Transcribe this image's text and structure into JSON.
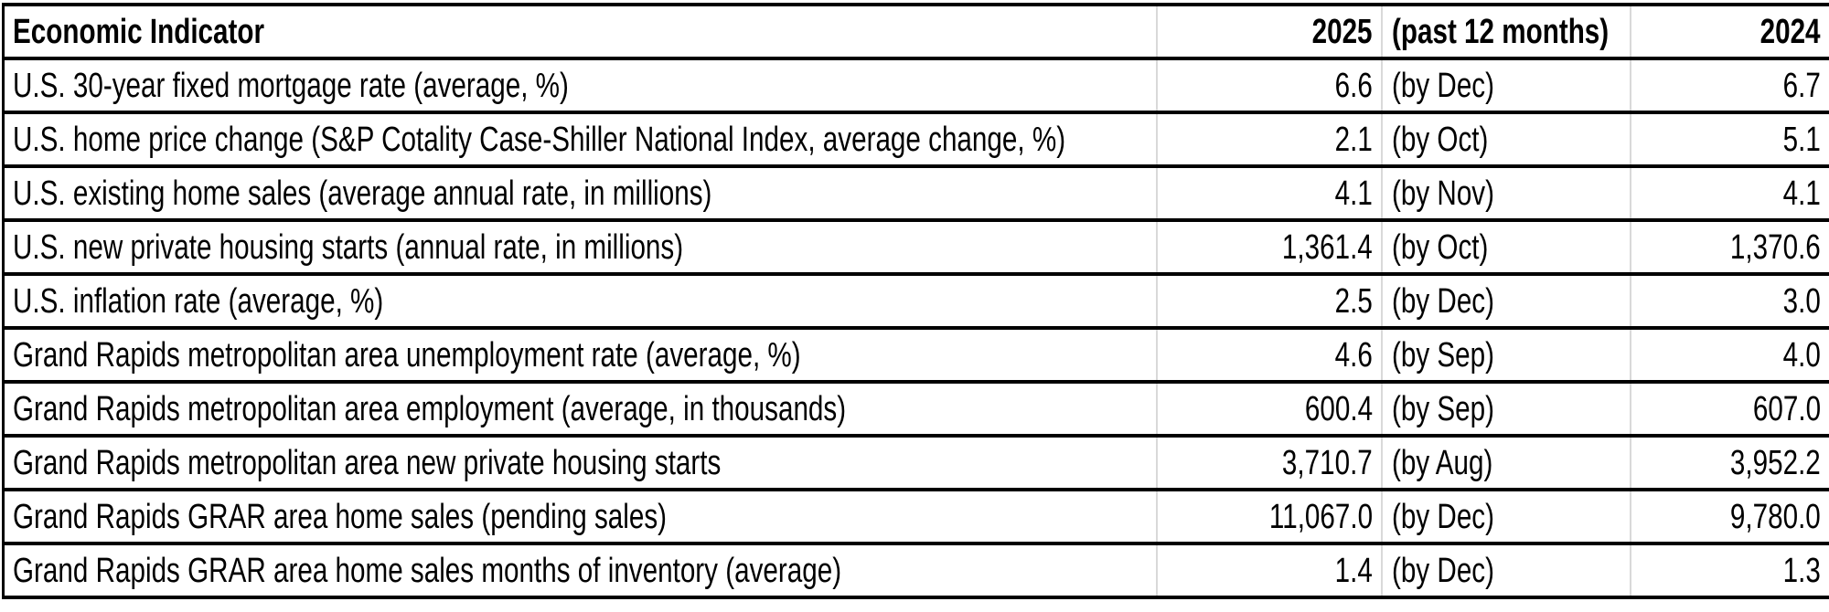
{
  "colors": {
    "text": "#000000",
    "border": "#000000",
    "gridline": "#d9d9d9",
    "background": "#ffffff"
  },
  "table": {
    "header": {
      "indicator": "Economic Indicator",
      "y2025": "2025",
      "period_note": "(past 12 months)",
      "y2024": "2024"
    },
    "rows": [
      {
        "indicator": "U.S. 30-year fixed mortgage rate (average, %)",
        "value_2025": "6.6",
        "by": "(by Dec)",
        "value_2024": "6.7"
      },
      {
        "indicator": "U.S. home price change (S&P Cotality Case-Shiller National Index, average change, %)",
        "value_2025": "2.1",
        "by": "(by Oct)",
        "value_2024": "5.1"
      },
      {
        "indicator": "U.S. existing home sales (average annual rate, in millions)",
        "value_2025": "4.1",
        "by": "(by Nov)",
        "value_2024": "4.1"
      },
      {
        "indicator": "U.S. new private housing starts (annual rate, in millions)",
        "value_2025": "1,361.4",
        "by": "(by Oct)",
        "value_2024": "1,370.6"
      },
      {
        "indicator": "U.S. inflation rate (average, %)",
        "value_2025": "2.5",
        "by": "(by Dec)",
        "value_2024": "3.0"
      },
      {
        "indicator": "Grand Rapids metropolitan area unemployment rate (average, %)",
        "value_2025": "4.6",
        "by": "(by Sep)",
        "value_2024": "4.0"
      },
      {
        "indicator": "Grand Rapids metropolitan area employment (average, in thousands)",
        "value_2025": "600.4",
        "by": "(by Sep)",
        "value_2024": "607.0"
      },
      {
        "indicator": "Grand Rapids metropolitan area new private housing starts",
        "value_2025": "3,710.7",
        "by": "(by Aug)",
        "value_2024": "3,952.2"
      },
      {
        "indicator": "Grand Rapids GRAR area home sales (pending sales)",
        "value_2025": "11,067.0",
        "by": "(by Dec)",
        "value_2024": "9,780.0"
      },
      {
        "indicator": "Grand Rapids GRAR area home sales months of inventory (average)",
        "value_2025": "1.4",
        "by": "(by Dec)",
        "value_2024": "1.3"
      }
    ]
  }
}
